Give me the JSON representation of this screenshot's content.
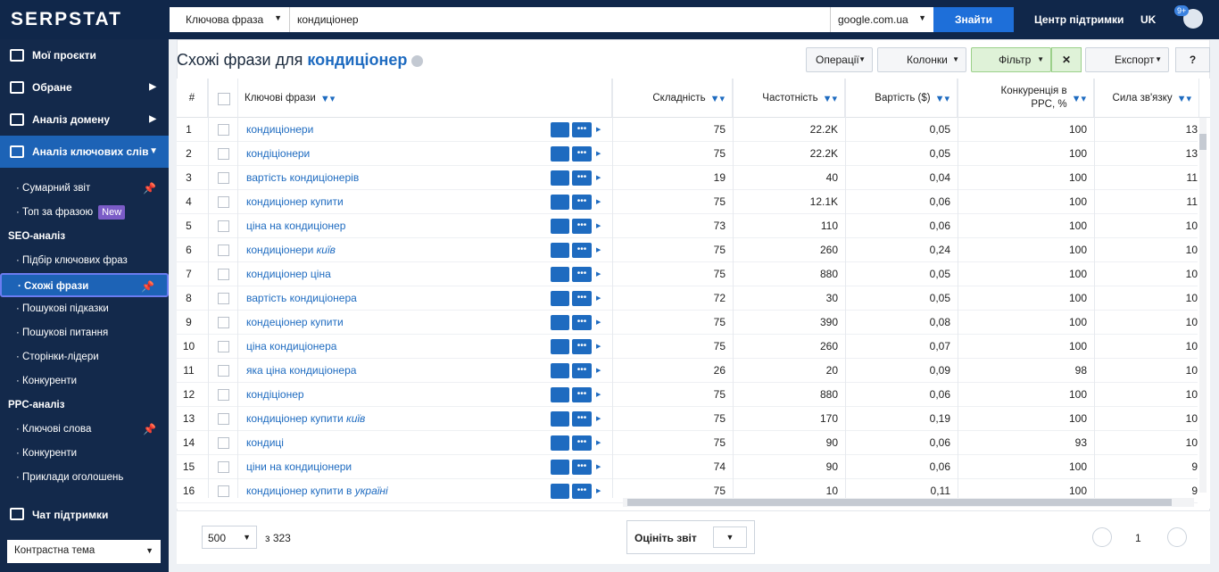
{
  "header": {
    "logo": "SERPSTAT",
    "search_type": "Ключова фраза",
    "query": "кондиціонер",
    "region": "google.com.ua",
    "search_button": "Знайти",
    "support": "Центр підтримки",
    "language": "UK",
    "badge": "9+"
  },
  "sidebar": {
    "main": [
      {
        "label": "Мої проєкти"
      },
      {
        "label": "Обране",
        "arrow": true
      },
      {
        "label": "Аналіз домену",
        "arrow": true
      },
      {
        "label": "Аналіз ключових слів",
        "open": true
      }
    ],
    "sub": [
      {
        "label": "Сумарний звіт",
        "pinned": true
      },
      {
        "label": "Топ за фразою",
        "badge": "New"
      },
      {
        "label": "SEO-аналіз",
        "section": true
      },
      {
        "label": "Підбір ключових фраз"
      },
      {
        "label": "Схожі фрази",
        "pinned": true,
        "active": true
      },
      {
        "label": "Пошукові підказки"
      },
      {
        "label": "Пошукові питання"
      },
      {
        "label": "Сторінки-лідери"
      },
      {
        "label": "Конкуренти"
      },
      {
        "label": "PPC-аналіз",
        "section": true
      },
      {
        "label": "Ключові слова",
        "pinned": true
      },
      {
        "label": "Конкуренти"
      },
      {
        "label": "Приклади оголошень"
      }
    ],
    "chat": "Чат підтримки",
    "theme": "Контрастна тема"
  },
  "report": {
    "title": "Схожі фрази для",
    "keyword": "кондиціонер",
    "buttons": [
      "Операції",
      "Колонки",
      "Фільтр",
      "Експорт"
    ]
  },
  "table": {
    "columns": [
      "#",
      "Ключові фрази",
      "Складність",
      "Частотність",
      "Вартість ($)",
      "Конкуренція в PPC, %",
      "Сила зв'язку"
    ],
    "rows": [
      {
        "n": "1",
        "phrase": "кондиціонери",
        "difficulty": "75",
        "volume": "22.2K",
        "cost": "0,05",
        "competition": "100",
        "strength": "13"
      },
      {
        "n": "2",
        "phrase": "кондіціонери",
        "difficulty": "75",
        "volume": "22.2K",
        "cost": "0,05",
        "competition": "100",
        "strength": "13"
      },
      {
        "n": "3",
        "phrase": "вартість кондиціонерів",
        "difficulty": "19",
        "volume": "40",
        "cost": "0,04",
        "competition": "100",
        "strength": "11"
      },
      {
        "n": "4",
        "phrase": "кондиціонер купити",
        "difficulty": "75",
        "volume": "12.1K",
        "cost": "0,06",
        "competition": "100",
        "strength": "11"
      },
      {
        "n": "5",
        "phrase": "ціна на кондиціонер",
        "difficulty": "73",
        "volume": "110",
        "cost": "0,06",
        "competition": "100",
        "strength": "10"
      },
      {
        "n": "6",
        "phrase": "кондиціонери",
        "phrase_italic": "київ",
        "difficulty": "75",
        "volume": "260",
        "cost": "0,24",
        "competition": "100",
        "strength": "10"
      },
      {
        "n": "7",
        "phrase": "кондиціонер ціна",
        "difficulty": "75",
        "volume": "880",
        "cost": "0,05",
        "competition": "100",
        "strength": "10"
      },
      {
        "n": "8",
        "phrase": "вартість кондиціонера",
        "difficulty": "72",
        "volume": "30",
        "cost": "0,05",
        "competition": "100",
        "strength": "10"
      },
      {
        "n": "9",
        "phrase": "кондеціонер купити",
        "difficulty": "75",
        "volume": "390",
        "cost": "0,08",
        "competition": "100",
        "strength": "10"
      },
      {
        "n": "10",
        "phrase": "ціна кондиціонера",
        "difficulty": "75",
        "volume": "260",
        "cost": "0,07",
        "competition": "100",
        "strength": "10"
      },
      {
        "n": "11",
        "phrase": "яка ціна кондиціонера",
        "difficulty": "26",
        "volume": "20",
        "cost": "0,09",
        "competition": "98",
        "strength": "10"
      },
      {
        "n": "12",
        "phrase": "кондіціонер",
        "difficulty": "75",
        "volume": "880",
        "cost": "0,06",
        "competition": "100",
        "strength": "10"
      },
      {
        "n": "13",
        "phrase": "кондиціонер купити",
        "phrase_italic": "київ",
        "difficulty": "75",
        "volume": "170",
        "cost": "0,19",
        "competition": "100",
        "strength": "10"
      },
      {
        "n": "14",
        "phrase": "кондиці",
        "difficulty": "75",
        "volume": "90",
        "cost": "0,06",
        "competition": "93",
        "strength": "10"
      },
      {
        "n": "15",
        "phrase": "ціни на кондиціонери",
        "difficulty": "74",
        "volume": "90",
        "cost": "0,06",
        "competition": "100",
        "strength": "9"
      },
      {
        "n": "16",
        "phrase": "кондиціонер купити в",
        "phrase_italic": "україні",
        "difficulty": "75",
        "volume": "10",
        "cost": "0,11",
        "competition": "100",
        "strength": "9"
      }
    ]
  },
  "footer": {
    "page_size": "500",
    "total": "з 323",
    "rate": "Оцініть звіт",
    "page": "1"
  }
}
